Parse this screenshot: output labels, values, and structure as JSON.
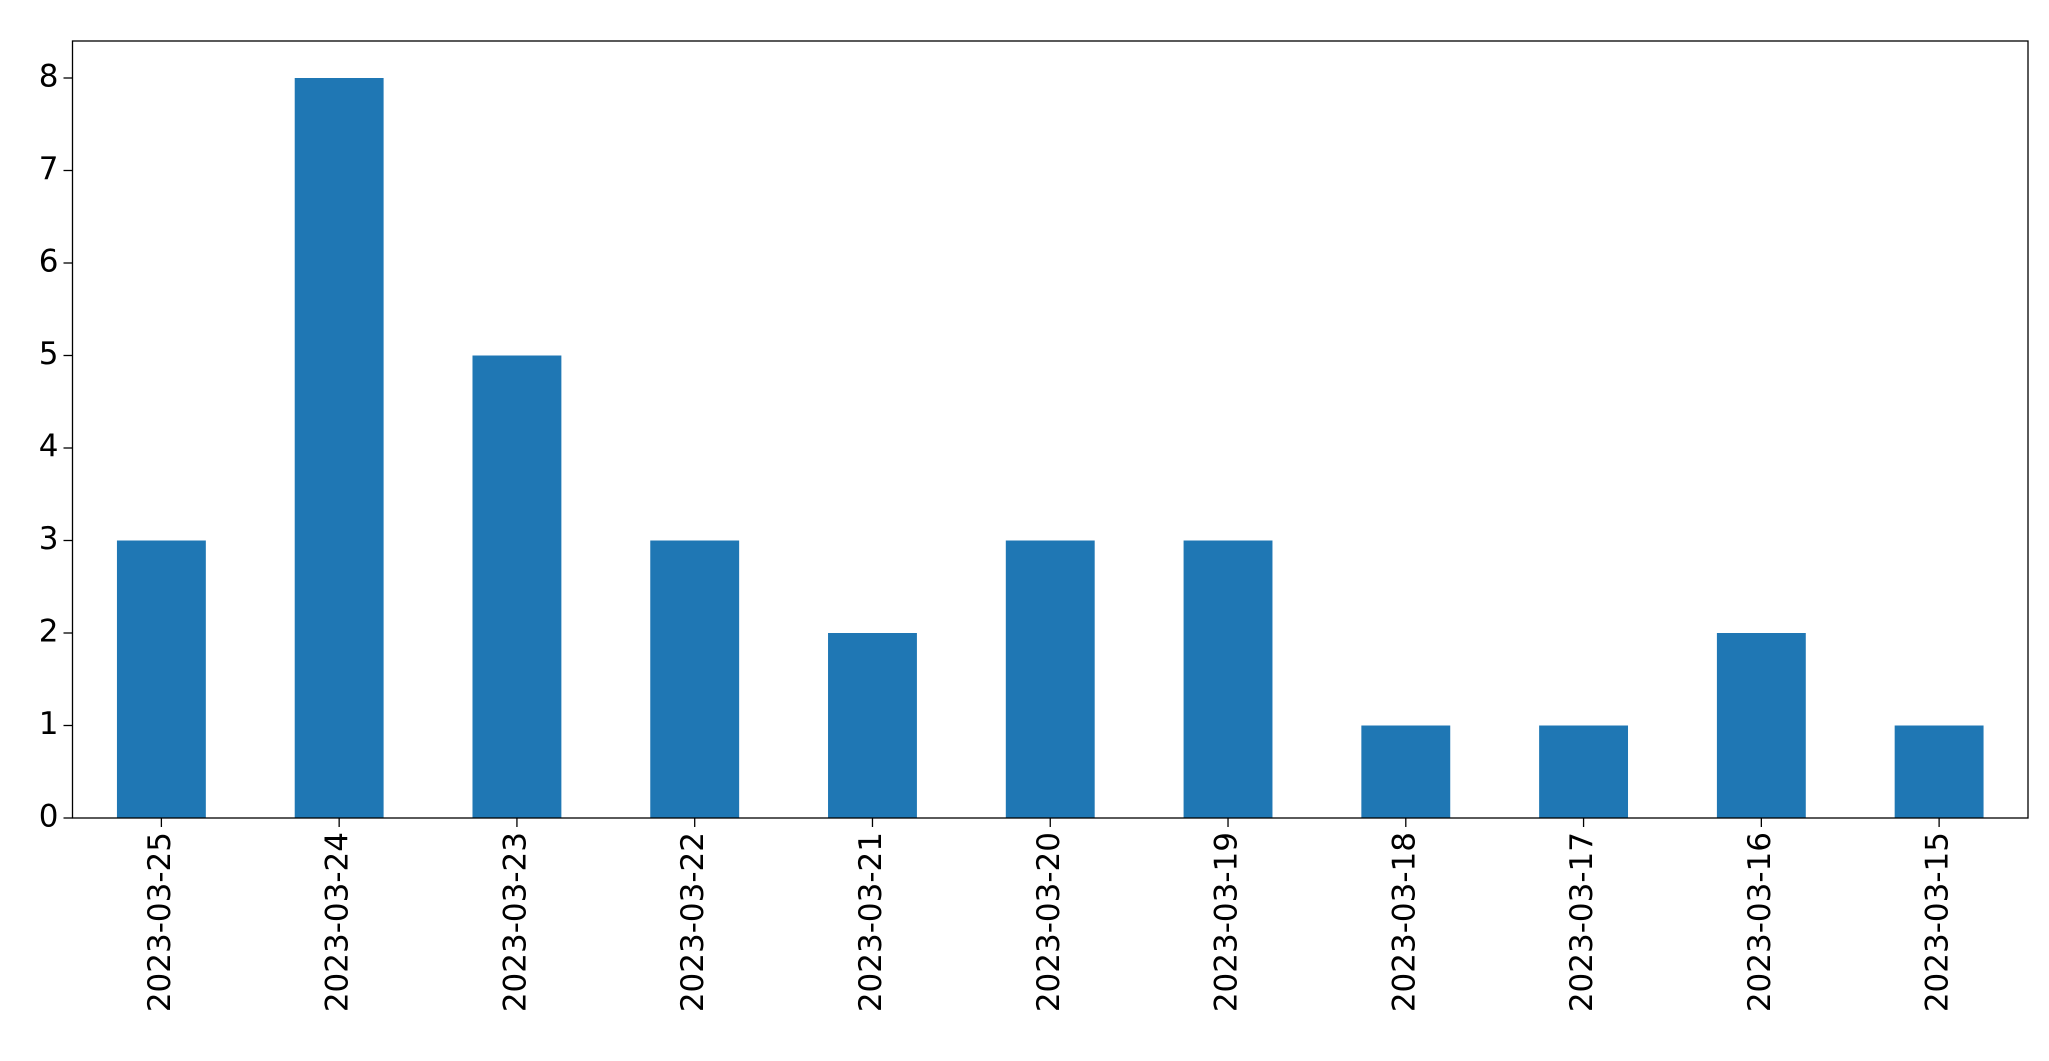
{
  "chart_data": {
    "type": "bar",
    "categories": [
      "2023-03-25",
      "2023-03-24",
      "2023-03-23",
      "2023-03-22",
      "2023-03-21",
      "2023-03-20",
      "2023-03-19",
      "2023-03-18",
      "2023-03-17",
      "2023-03-16",
      "2023-03-15"
    ],
    "values": [
      3,
      8,
      5,
      3,
      2,
      3,
      3,
      1,
      1,
      2,
      1
    ],
    "color": "#1f77b4",
    "ylim": [
      0,
      8.4
    ],
    "yticks": [
      0,
      1,
      2,
      3,
      4,
      5,
      6,
      7,
      8
    ],
    "grid": false
  }
}
